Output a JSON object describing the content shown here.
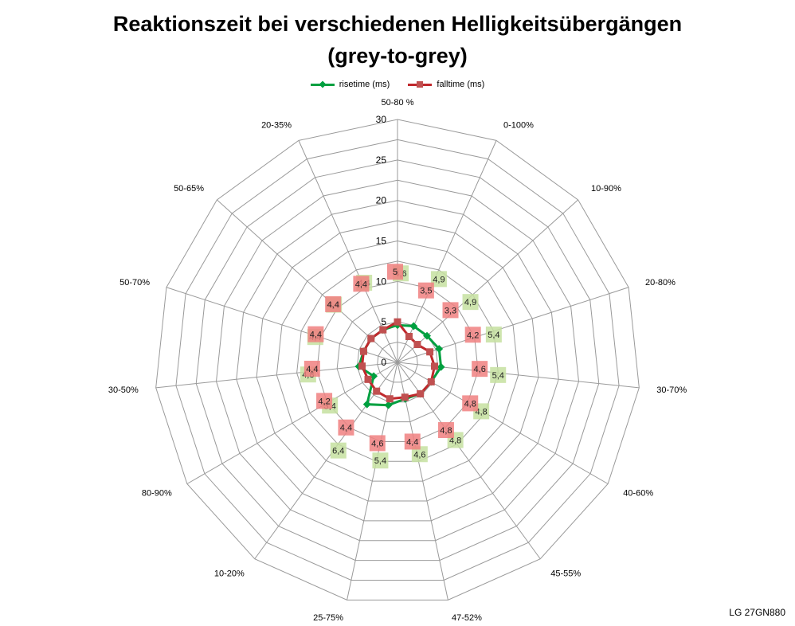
{
  "chart_data": {
    "type": "radar",
    "title_line1": "Reaktionszeit bei verschiedenen Helligkeitsübergängen",
    "title_line2": "(grey-to-grey)",
    "categories": [
      "50-80 %",
      "0-100%",
      "10-90%",
      "20-80%",
      "30-70%",
      "40-60%",
      "45-55%",
      "47-52%",
      "25-75%",
      "10-20%",
      "80-90%",
      "30-50%",
      "50-70%",
      "50-65%",
      "20-35%"
    ],
    "rlim": [
      0,
      30
    ],
    "ticks": [
      "0",
      "5",
      "10",
      "15",
      "20",
      "25",
      "30"
    ],
    "grid": true,
    "legend_position": "top",
    "series": [
      {
        "name": "risetime (ms)",
        "color": "#00a040",
        "label_color": "#c6e0a0",
        "values": [
          4.6,
          4.9,
          4.9,
          5.4,
          5.4,
          4.8,
          4.8,
          4.6,
          5.4,
          6.4,
          3.4,
          4.8,
          4.4,
          4.4,
          4.4
        ],
        "labels": [
          "4,6",
          "4,9",
          "4,9",
          "5,4",
          "5,4",
          "4,8",
          "4,8",
          "4,6",
          "5,4",
          "6,4",
          "3,4",
          "4,8",
          "4,4",
          "4,4",
          "4,4"
        ]
      },
      {
        "name": "falltime (ms)",
        "color": "#c0282c",
        "label_color": "#f08080",
        "values": [
          5,
          3.5,
          3.3,
          4.2,
          4.6,
          4.8,
          4.8,
          4.4,
          4.6,
          4.4,
          4.2,
          4.4,
          4.4,
          4.4,
          4.4
        ],
        "labels": [
          "5",
          "3,5",
          "3,3",
          "4,2",
          "4,6",
          "4,8",
          "4,8",
          "4,4",
          "4,6",
          "4,4",
          "4,2",
          "4,4",
          "4,4",
          "4,4",
          "4,4"
        ]
      }
    ]
  },
  "watermark": "LG 27GN880"
}
